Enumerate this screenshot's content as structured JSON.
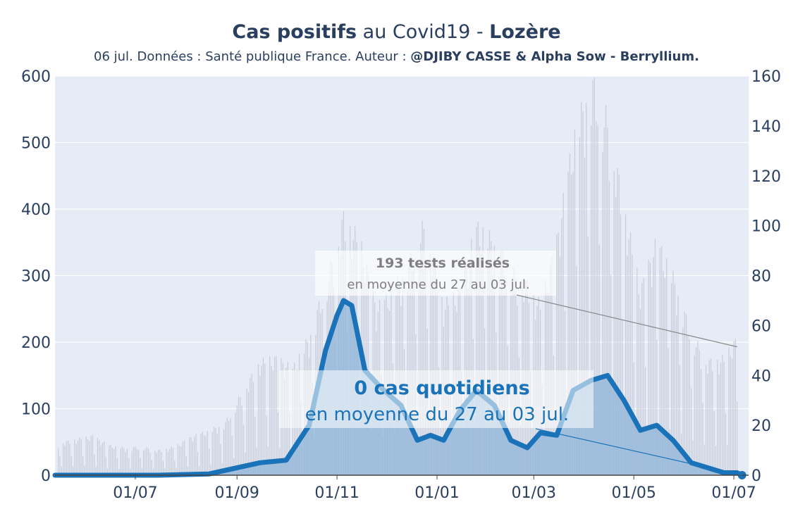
{
  "title": {
    "part1": "Cas positifs",
    "part2": " au Covid19 - ",
    "part3": "Lozère"
  },
  "subtitle": {
    "prefix": "06 jul. Données : Santé publique France. Auteur : ",
    "author": "@DJIBY CASSE & Alpha Sow - Berryllium."
  },
  "colors": {
    "plot_bg": "#e5ecf6",
    "tests_bar": "#c8ccd8",
    "cases_area": "#8fb6d9",
    "cases_line_dark": "#1a73b8",
    "cases_line_light": "#a9cfe9",
    "text": "#2a3f5f",
    "annotation_gray": "#7f7f7f"
  },
  "chart_data": {
    "type": "line",
    "x_axis": {
      "tick_labels": [
        "01/07",
        "01/09",
        "01/11",
        "01/01",
        "01/03",
        "01/05",
        "01/07"
      ],
      "range": [
        "2020-05-13",
        "2021-07-10"
      ],
      "grid": false
    },
    "y_axis_left": {
      "label": "",
      "ticks": [
        "0",
        "100",
        "200",
        "300",
        "400",
        "500",
        "600"
      ],
      "range": [
        0,
        600
      ],
      "grid": true
    },
    "y_axis_right": {
      "label": "",
      "ticks": [
        "0",
        "20",
        "40",
        "60",
        "80",
        "100",
        "120",
        "140",
        "160"
      ],
      "range": [
        0,
        160
      ]
    },
    "series": [
      {
        "type": "bar",
        "axis": "left",
        "points": [
          [
            "2020-05-15",
            45
          ],
          [
            "2020-05-25",
            50
          ],
          [
            "2020-06-05",
            55
          ],
          [
            "2020-06-15",
            42
          ],
          [
            "2020-06-25",
            38
          ],
          [
            "2020-07-05",
            40
          ],
          [
            "2020-07-15",
            35
          ],
          [
            "2020-07-25",
            40
          ],
          [
            "2020-08-05",
            55
          ],
          [
            "2020-08-15",
            62
          ],
          [
            "2020-08-25",
            75
          ],
          [
            "2020-09-05",
            120
          ],
          [
            "2020-09-15",
            160
          ],
          [
            "2020-09-25",
            165
          ],
          [
            "2020-10-05",
            150
          ],
          [
            "2020-10-15",
            195
          ],
          [
            "2020-10-25",
            270
          ],
          [
            "2020-11-05",
            365
          ],
          [
            "2020-11-15",
            330
          ],
          [
            "2020-11-25",
            235
          ],
          [
            "2020-12-05",
            260
          ],
          [
            "2020-12-15",
            300
          ],
          [
            "2020-12-25",
            360
          ],
          [
            "2021-01-05",
            240
          ],
          [
            "2021-01-15",
            260
          ],
          [
            "2021-01-25",
            350
          ],
          [
            "2021-02-05",
            330
          ],
          [
            "2021-02-15",
            290
          ],
          [
            "2021-02-25",
            270
          ],
          [
            "2021-03-05",
            240
          ],
          [
            "2021-03-15",
            330
          ],
          [
            "2021-03-25",
            470
          ],
          [
            "2021-04-05",
            560
          ],
          [
            "2021-04-15",
            500
          ],
          [
            "2021-04-25",
            380
          ],
          [
            "2021-05-05",
            260
          ],
          [
            "2021-05-15",
            330
          ],
          [
            "2021-05-25",
            280
          ],
          [
            "2021-06-05",
            200
          ],
          [
            "2021-06-15",
            160
          ],
          [
            "2021-06-25",
            165
          ],
          [
            "2021-07-03",
            193
          ]
        ]
      },
      {
        "type": "area",
        "axis": "right",
        "points": [
          [
            "2020-05-13",
            0
          ],
          [
            "2020-06-15",
            0
          ],
          [
            "2020-07-15",
            0
          ],
          [
            "2020-08-15",
            0.5
          ],
          [
            "2020-09-01",
            3
          ],
          [
            "2020-09-15",
            5
          ],
          [
            "2020-10-01",
            6
          ],
          [
            "2020-10-15",
            20
          ],
          [
            "2020-10-25",
            50
          ],
          [
            "2020-11-01",
            64
          ],
          [
            "2020-11-05",
            70
          ],
          [
            "2020-11-10",
            68
          ],
          [
            "2020-11-18",
            42
          ],
          [
            "2020-11-28",
            35
          ],
          [
            "2020-12-10",
            28
          ],
          [
            "2020-12-20",
            14
          ],
          [
            "2020-12-28",
            16
          ],
          [
            "2021-01-05",
            14
          ],
          [
            "2021-01-15",
            26
          ],
          [
            "2021-01-25",
            34
          ],
          [
            "2021-02-05",
            28
          ],
          [
            "2021-02-15",
            14
          ],
          [
            "2021-02-25",
            11
          ],
          [
            "2021-03-05",
            17
          ],
          [
            "2021-03-15",
            16
          ],
          [
            "2021-03-25",
            34
          ],
          [
            "2021-04-05",
            38
          ],
          [
            "2021-04-15",
            40
          ],
          [
            "2021-04-25",
            30
          ],
          [
            "2021-05-05",
            18
          ],
          [
            "2021-05-15",
            20
          ],
          [
            "2021-05-25",
            14
          ],
          [
            "2021-06-05",
            5
          ],
          [
            "2021-06-15",
            3
          ],
          [
            "2021-06-25",
            1
          ],
          [
            "2021-07-03",
            1
          ],
          [
            "2021-07-06",
            0
          ]
        ]
      }
    ],
    "annotations": [
      {
        "value_text": "193 tests réalisés",
        "detail_text": "en moyenne du 27 au 03 jul.",
        "points_to": [
          "2021-07-03",
          193
        ]
      },
      {
        "value_text": "0 cas quotidiens",
        "detail_text": "en moyenne du 27 au 03 jul.",
        "points_to": [
          "2021-07-06",
          0
        ]
      }
    ]
  }
}
